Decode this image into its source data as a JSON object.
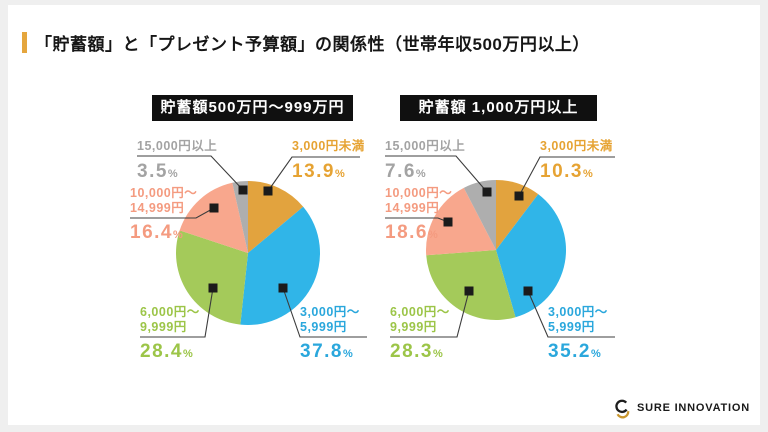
{
  "page": {
    "title": "「貯蓄額」と「プレゼント予算額」の関係性（世帯年収500万円以上）",
    "background": "#EFEFEF",
    "accent_color": "#E5A63D",
    "brand": "SURE INNOVATION",
    "percent_suffix": "%"
  },
  "chart_data": [
    {
      "type": "pie",
      "title": "貯蓄額500万円～999万円",
      "unit": "%",
      "start_angle_deg": 0,
      "direction": "clockwise",
      "slices": [
        {
          "label": "3,000円未満",
          "label_lines": [
            "3,000円未満"
          ],
          "value": 13.9,
          "display": "13.9",
          "color": "#E2A33E",
          "text_color": "#E6A333"
        },
        {
          "label": "3,000円～5,999円",
          "label_lines": [
            "3,000円～",
            "5,999円"
          ],
          "value": 37.8,
          "display": "37.8",
          "color": "#30B5E8",
          "text_color": "#2AA7DC"
        },
        {
          "label": "6,000円～9,999円",
          "label_lines": [
            "6,000円～",
            "9,999円"
          ],
          "value": 28.4,
          "display": "28.4",
          "color": "#A4CA5A",
          "text_color": "#9CC548"
        },
        {
          "label": "10,000円～14,999円",
          "label_lines": [
            "10,000円～",
            "14,999円"
          ],
          "value": 16.4,
          "display": "16.4",
          "color": "#F8A78D",
          "text_color": "#F49B80"
        },
        {
          "label": "15,000円以上",
          "label_lines": [
            "15,000円以上"
          ],
          "value": 3.5,
          "display": "3.5",
          "color": "#AEAEAE",
          "text_color": "#A3A3A3"
        }
      ]
    },
    {
      "type": "pie",
      "title": "貯蓄額 1,000万円以上",
      "unit": "%",
      "start_angle_deg": 0,
      "direction": "clockwise",
      "slices": [
        {
          "label": "3,000円未満",
          "label_lines": [
            "3,000円未満"
          ],
          "value": 10.3,
          "display": "10.3",
          "color": "#E2A33E",
          "text_color": "#E6A333"
        },
        {
          "label": "3,000円～5,999円",
          "label_lines": [
            "3,000円～",
            "5,999円"
          ],
          "value": 35.2,
          "display": "35.2",
          "color": "#30B5E8",
          "text_color": "#2AA7DC"
        },
        {
          "label": "6,000円～9,999円",
          "label_lines": [
            "6,000円～",
            "9,999円"
          ],
          "value": 28.3,
          "display": "28.3",
          "color": "#A4CA5A",
          "text_color": "#9CC548"
        },
        {
          "label": "10,000円～14,999円",
          "label_lines": [
            "10,000円～",
            "14,999円"
          ],
          "value": 18.6,
          "display": "18.6",
          "color": "#F8A78D",
          "text_color": "#F49B80"
        },
        {
          "label": "15,000円以上",
          "label_lines": [
            "15,000円以上"
          ],
          "value": 7.6,
          "display": "7.6",
          "color": "#AEAEAE",
          "text_color": "#A3A3A3"
        }
      ]
    }
  ]
}
